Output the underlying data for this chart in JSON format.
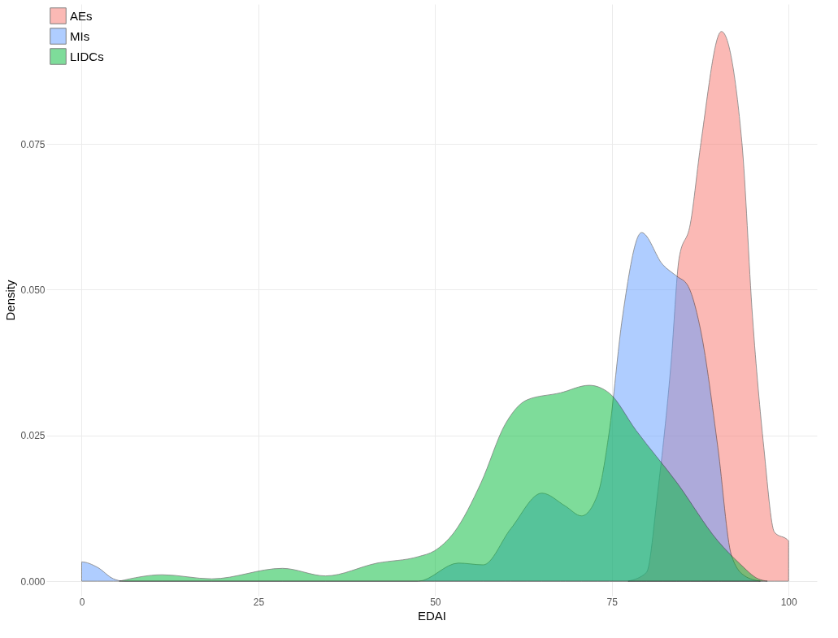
{
  "chart_data": {
    "type": "area",
    "xlabel": "EDAI",
    "ylabel": "Density",
    "xlim": [
      -5,
      104
    ],
    "ylim": [
      -0.0025,
      0.099
    ],
    "xticks": [
      0,
      25,
      50,
      75,
      100
    ],
    "yticks": [
      {
        "value": 0,
        "label": "0.000"
      },
      {
        "value": 0.025,
        "label": "0.025"
      },
      {
        "value": 0.05,
        "label": "0.050"
      },
      {
        "value": 0.075,
        "label": "0.075"
      }
    ],
    "grid": true,
    "legend": "top left",
    "series": [
      {
        "name": "AEs",
        "color": "#f8766d",
        "x": [
          77.3,
          79.9,
          81.5,
          83.4,
          84.5,
          86.1,
          87.6,
          90.5,
          93.4,
          94.9,
          96.5,
          98.0,
          100,
          100
        ],
        "values": [
          0,
          0.0015,
          0.0154,
          0.0378,
          0.0553,
          0.0613,
          0.0752,
          0.0943,
          0.0752,
          0.0453,
          0.0229,
          0.0084,
          0.0069,
          0
        ]
      },
      {
        "name": "MIs",
        "color": "#619cff",
        "x": [
          0,
          0,
          2.2,
          4.5,
          6,
          47.6,
          53.3,
          56.8,
          60.7,
          65.1,
          68.4,
          70.7,
          73.0,
          74.6,
          76.5,
          79.2,
          82.2,
          84.2,
          85.7,
          87.6,
          90.0,
          91.9,
          93.8,
          96
        ],
        "values": [
          0,
          0.0033,
          0.0024,
          0.0004,
          0,
          0,
          0.0031,
          0.0028,
          0.009,
          0.0151,
          0.0129,
          0.0112,
          0.0149,
          0.0254,
          0.0453,
          0.0598,
          0.0543,
          0.0523,
          0.0508,
          0.0428,
          0.0229,
          0.0045,
          0.0009,
          0
        ]
      },
      {
        "name": "LIDCs",
        "color": "#00ba38",
        "x": [
          5.3,
          11.4,
          18.4,
          28.4,
          34.5,
          41.8,
          47.6,
          49.9,
          52.7,
          56.5,
          59.9,
          63.0,
          67.7,
          71.8,
          74.6,
          78.4,
          84.2,
          90.0,
          93.1,
          95.7,
          97
        ],
        "values": [
          0,
          0.0011,
          0.0004,
          0.0022,
          0.0009,
          0.0031,
          0.0042,
          0.0052,
          0.0084,
          0.0169,
          0.0269,
          0.0311,
          0.0323,
          0.0336,
          0.0323,
          0.0259,
          0.0169,
          0.0069,
          0.003,
          0.0004,
          0
        ]
      }
    ]
  }
}
